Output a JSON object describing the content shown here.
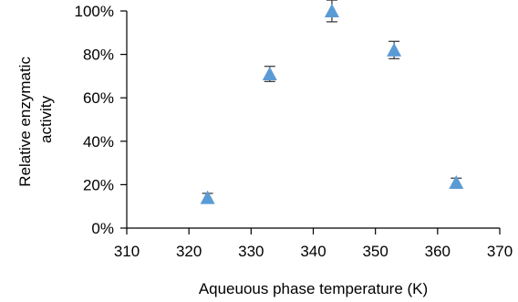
{
  "chart_data": {
    "type": "scatter",
    "title": "",
    "xlabel": "Aqueuous phase temperature (K)",
    "ylabel_lines": [
      "Relative enzymatic",
      "activity"
    ],
    "xlim": [
      310,
      370
    ],
    "ylim": [
      0,
      100
    ],
    "x_ticks": [
      310,
      320,
      330,
      340,
      350,
      360,
      370
    ],
    "y_ticks": [
      0,
      20,
      40,
      60,
      80,
      100
    ],
    "y_tick_suffix": "%",
    "grid": false,
    "legend": "none",
    "marker": "triangle",
    "marker_color": "#5B9BD5",
    "error_bar_color": "#404040",
    "series": [
      {
        "x": [
          323,
          333,
          343,
          353,
          363
        ],
        "y": [
          14,
          71,
          100,
          82,
          21
        ],
        "error": [
          2,
          3.5,
          5,
          4,
          2
        ]
      }
    ]
  }
}
